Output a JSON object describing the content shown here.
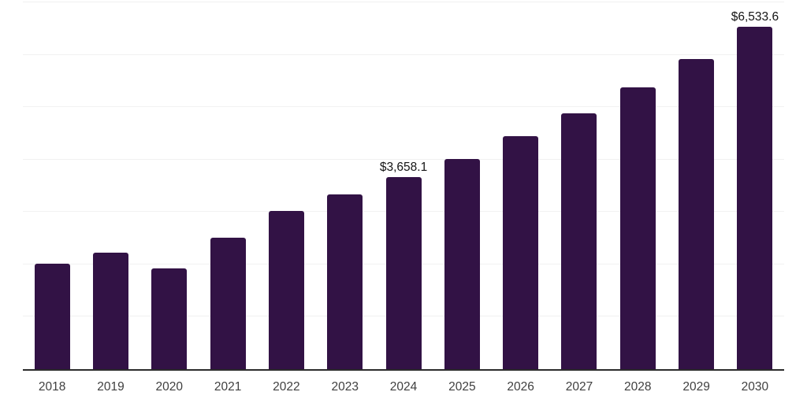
{
  "chart_data": {
    "type": "bar",
    "title": "",
    "xlabel": "",
    "ylabel": "",
    "categories": [
      "2018",
      "2019",
      "2020",
      "2021",
      "2022",
      "2023",
      "2024",
      "2025",
      "2026",
      "2027",
      "2028",
      "2029",
      "2030"
    ],
    "values": [
      2020,
      2230,
      1925,
      2515,
      3025,
      3340,
      3658.1,
      4010,
      4440,
      4875,
      5380,
      5920,
      6533.6
    ],
    "point_labels": [
      "",
      "",
      "",
      "",
      "",
      "",
      "$3,658.1",
      "",
      "",
      "",
      "",
      "",
      "$6,533.6"
    ],
    "ylim": [
      0,
      7000
    ],
    "gridline_step": 1000,
    "grid": "horizontal-faint",
    "legend": "none",
    "currency_prefix": "$"
  },
  "colors": {
    "bar": "#321245",
    "axis_line": "#2b2b2b",
    "gridline": "#f1f1f1",
    "tick_label": "#3f3f3f",
    "value_label": "#151515",
    "background": "#ffffff"
  }
}
